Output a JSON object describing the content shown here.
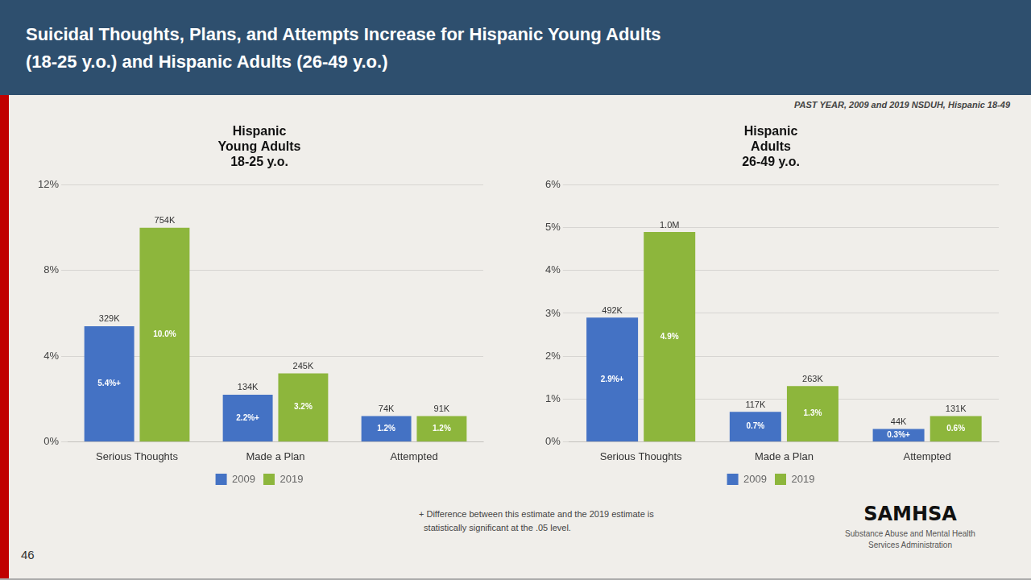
{
  "title": "Suicidal Thoughts, Plans, and Attempts Increase for Hispanic Young Adults\n(18-25 y.o.) and Hispanic Adults (26-49 y.o.)",
  "subtitle": "PAST YEAR, 2009 and 2019 NSDUH, Hispanic 18-49",
  "annotations": [
    "+ Difference between this estimate and the 2019 estimate is\n  statistically significant at the .05 level.",
    "SAMHSA",
    "Substance Abuse and Mental Health\nServices Administration",
    "46"
  ],
  "chart_data": [
    {
      "type": "bar",
      "title": "Hispanic\nYoung Adults\n18-25 y.o.",
      "categories": [
        "Serious Thoughts",
        "Made a Plan",
        "Attempted"
      ],
      "series": [
        {
          "name": "2009",
          "color": "#4472c4",
          "values": [
            5.4,
            2.2,
            1.2
          ],
          "value_labels": [
            "5.4%+",
            "2.2%+",
            "1.2%"
          ],
          "counts": [
            "329K",
            "134K",
            "74K"
          ]
        },
        {
          "name": "2019",
          "color": "#8db63c",
          "values": [
            10.0,
            3.2,
            1.2
          ],
          "value_labels": [
            "10.0%",
            "3.2%",
            "1.2%"
          ],
          "counts": [
            "754K",
            "245K",
            "91K"
          ]
        }
      ],
      "ylim": [
        0,
        12
      ],
      "yticks": [
        {
          "value": 0,
          "label": "0%"
        },
        {
          "value": 4,
          "label": "4%"
        },
        {
          "value": 8,
          "label": "8%"
        },
        {
          "value": 12,
          "label": "12%"
        }
      ],
      "grid": true,
      "legend": "bottom",
      "data_labels": true
    },
    {
      "type": "bar",
      "title": "Hispanic\nAdults\n26-49 y.o.",
      "categories": [
        "Serious Thoughts",
        "Made a Plan",
        "Attempted"
      ],
      "series": [
        {
          "name": "2009",
          "color": "#4472c4",
          "values": [
            2.9,
            0.7,
            0.3
          ],
          "value_labels": [
            "2.9%+",
            "0.7%",
            "0.3%+"
          ],
          "counts": [
            "492K",
            "117K",
            "44K"
          ]
        },
        {
          "name": "2019",
          "color": "#8db63c",
          "values": [
            4.9,
            1.3,
            0.6
          ],
          "value_labels": [
            "4.9%",
            "1.3%",
            "0.6%"
          ],
          "counts": [
            "1.0M",
            "263K",
            "131K"
          ]
        }
      ],
      "ylim": [
        0,
        6
      ],
      "yticks": [
        {
          "value": 0,
          "label": "0%"
        },
        {
          "value": 1,
          "label": "1%"
        },
        {
          "value": 2,
          "label": "2%"
        },
        {
          "value": 3,
          "label": "3%"
        },
        {
          "value": 4,
          "label": "4%"
        },
        {
          "value": 5,
          "label": "5%"
        },
        {
          "value": 6,
          "label": "6%"
        }
      ],
      "grid": true,
      "legend": "bottom",
      "data_labels": true
    }
  ]
}
